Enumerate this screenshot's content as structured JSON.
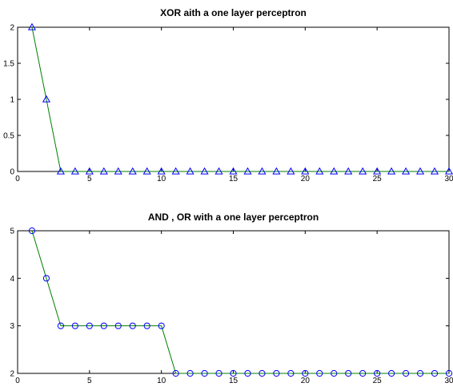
{
  "chart_data": [
    {
      "type": "line",
      "title": "XOR aith a one layer perceptron",
      "xlabel": "",
      "ylabel": "",
      "xlim": [
        0,
        30
      ],
      "ylim": [
        0,
        2
      ],
      "xticks": [
        0,
        5,
        10,
        15,
        20,
        25,
        30
      ],
      "yticks": [
        0,
        0.5,
        1,
        1.5,
        2
      ],
      "xtick_labels": [
        "0",
        "5",
        "10",
        "15",
        "20",
        "25",
        "30"
      ],
      "ytick_labels": [
        "0",
        "0.5",
        "1",
        "1.5",
        "2"
      ],
      "grid": false,
      "marker": "triangle",
      "line_color": "#008000",
      "marker_color": "#0000ff",
      "series": [
        {
          "x": [
            1,
            2,
            3,
            4,
            5,
            6,
            7,
            8,
            9,
            10,
            11,
            12,
            13,
            14,
            15,
            16,
            17,
            18,
            19,
            20,
            21,
            22,
            23,
            24,
            25,
            26,
            27,
            28,
            29,
            30
          ],
          "y": [
            2,
            1,
            0,
            0,
            0,
            0,
            0,
            0,
            0,
            0,
            0,
            0,
            0,
            0,
            0,
            0,
            0,
            0,
            0,
            0,
            0,
            0,
            0,
            0,
            0,
            0,
            0,
            0,
            0,
            0
          ]
        }
      ]
    },
    {
      "type": "line",
      "title": "AND , OR with a one layer perceptron",
      "xlabel": "",
      "ylabel": "",
      "xlim": [
        0,
        30
      ],
      "ylim": [
        2,
        5
      ],
      "xticks": [
        0,
        5,
        10,
        15,
        20,
        25,
        30
      ],
      "yticks": [
        2,
        3,
        4,
        5
      ],
      "xtick_labels": [
        "0",
        "5",
        "10",
        "15",
        "20",
        "25",
        "30"
      ],
      "ytick_labels": [
        "2",
        "3",
        "4",
        "5"
      ],
      "grid": false,
      "marker": "circle",
      "line_color": "#008000",
      "marker_color": "#0000ff",
      "series": [
        {
          "x": [
            1,
            2,
            3,
            4,
            5,
            6,
            7,
            8,
            9,
            10,
            11,
            12,
            13,
            14,
            15,
            16,
            17,
            18,
            19,
            20,
            21,
            22,
            23,
            24,
            25,
            26,
            27,
            28,
            29,
            30
          ],
          "y": [
            5,
            4,
            3,
            3,
            3,
            3,
            3,
            3,
            3,
            3,
            2,
            2,
            2,
            2,
            2,
            2,
            2,
            2,
            2,
            2,
            2,
            2,
            2,
            2,
            2,
            2,
            2,
            2,
            2,
            2
          ]
        }
      ]
    }
  ]
}
